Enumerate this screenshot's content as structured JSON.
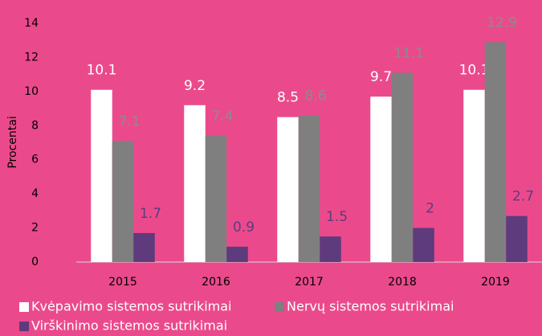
{
  "chart_data": {
    "type": "bar",
    "y_label": "Procentai",
    "categories": [
      "2015",
      "2016",
      "2017",
      "2018",
      "2019"
    ],
    "series": [
      {
        "name": "Kvėpavimo sistemos sutrikimai",
        "color": "#ffffff",
        "values": [
          10.1,
          9.2,
          8.5,
          9.7,
          10.1
        ]
      },
      {
        "name": "Nervų sistemos sutrikimai",
        "color": "#7f7f7f",
        "values": [
          7.1,
          7.4,
          8.6,
          11.1,
          12.9
        ]
      },
      {
        "name": "Virškinimo sistemos sutrikimai",
        "color": "#5e3b7c",
        "values": [
          1.7,
          0.9,
          1.5,
          2,
          2.7
        ]
      }
    ],
    "ylim": [
      0,
      14
    ],
    "yticks": [
      0,
      2,
      4,
      6,
      8,
      10,
      12,
      14
    ],
    "grid": false,
    "legend": "bottom"
  }
}
